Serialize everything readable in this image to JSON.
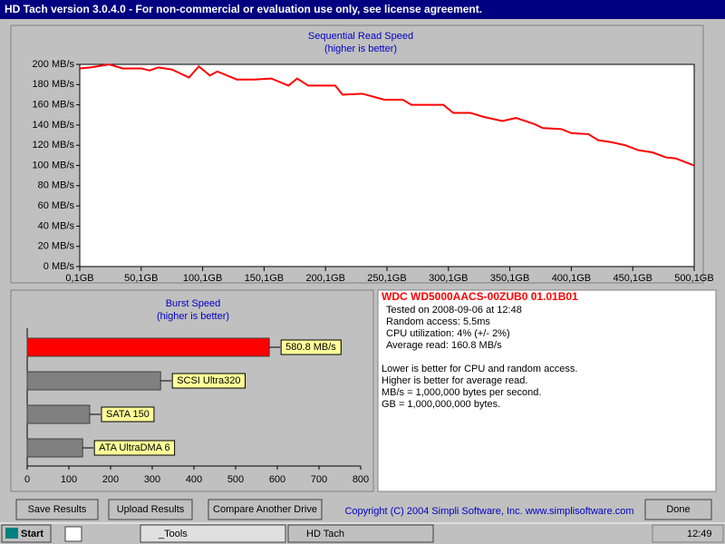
{
  "title_bar": "HD Tach version 3.0.4.0  - For non-commercial or evaluation use only, see license agreement.",
  "read_chart": {
    "type": "line",
    "title": "Sequential Read Speed",
    "subtitle": "(higher is better)",
    "color": "#ff0000",
    "x": [
      0.1,
      9,
      24,
      35,
      50,
      57,
      64,
      75,
      89,
      97,
      106,
      112,
      128,
      142,
      156,
      170,
      177,
      186,
      208,
      214,
      230,
      248,
      263,
      270,
      296,
      304,
      318,
      329,
      344,
      355,
      370,
      377,
      392,
      400,
      414,
      422,
      433,
      444,
      455,
      466,
      477,
      485,
      500
    ],
    "values": [
      196,
      197,
      200,
      196,
      196,
      194,
      197,
      195,
      187,
      198,
      189,
      193,
      185,
      185,
      186,
      179,
      186,
      179,
      179,
      170,
      171,
      165,
      165,
      160,
      160,
      152,
      152,
      148,
      144,
      147,
      141,
      137,
      136,
      132,
      131,
      125,
      123,
      120,
      115,
      113,
      108,
      107,
      100
    ],
    "xlim": [
      0.1,
      500.1
    ],
    "xticks": [
      {
        "value": 0.1,
        "label": "0,1GB"
      },
      {
        "value": 50.1,
        "label": "50,1GB"
      },
      {
        "value": 100.1,
        "label": "100,1GB"
      },
      {
        "value": 150.1,
        "label": "150,1GB"
      },
      {
        "value": 200.1,
        "label": "200,1GB"
      },
      {
        "value": 250.1,
        "label": "250,1GB"
      },
      {
        "value": 300.1,
        "label": "300,1GB"
      },
      {
        "value": 350.1,
        "label": "350,1GB"
      },
      {
        "value": 400.1,
        "label": "400,1GB"
      },
      {
        "value": 450.1,
        "label": "450,1GB"
      },
      {
        "value": 500.1,
        "label": "500,1GB"
      }
    ],
    "ylim": [
      0,
      200
    ],
    "yticks": [
      {
        "value": 0,
        "label": "0 MB/s"
      },
      {
        "value": 20,
        "label": "20 MB/s"
      },
      {
        "value": 40,
        "label": "40 MB/s"
      },
      {
        "value": 60,
        "label": "60 MB/s"
      },
      {
        "value": 80,
        "label": "80 MB/s"
      },
      {
        "value": 100,
        "label": "100 MB/s"
      },
      {
        "value": 120,
        "label": "120 MB/s"
      },
      {
        "value": 140,
        "label": "140 MB/s"
      },
      {
        "value": 160,
        "label": "160 MB/s"
      },
      {
        "value": 180,
        "label": "180 MB/s"
      },
      {
        "value": 200,
        "label": "200 MB/s"
      }
    ]
  },
  "burst_chart": {
    "type": "bar",
    "title": "Burst Speed",
    "subtitle": "(higher is better)",
    "bars": [
      {
        "label": "580.8 MB/s",
        "value": 580.8,
        "color": "#ff0000"
      },
      {
        "label": "SCSI Ultra320",
        "value": 320,
        "color": "#808080"
      },
      {
        "label": "SATA 150",
        "value": 150,
        "color": "#808080"
      },
      {
        "label": "ATA UltraDMA 6",
        "value": 133,
        "color": "#808080"
      }
    ],
    "xlim": [
      0,
      800
    ],
    "xticks": [
      0,
      100,
      200,
      300,
      400,
      500,
      600,
      700,
      800
    ]
  },
  "info": {
    "drive": "WDC WD5000AACS-00ZUB0 01.01B01",
    "results": [
      "Tested on 2008-09-06 at 12:48",
      "Random access: 5.5ms",
      "CPU utilization: 4% (+/- 2%)",
      "Average read: 160.8 MB/s"
    ],
    "notes": [
      "Lower is better for CPU and random access.",
      "Higher is better for average read.",
      "MB/s = 1,000,000 bytes per second.",
      "GB = 1,000,000,000 bytes."
    ]
  },
  "buttons": [
    "Save Results",
    "Upload Results",
    "Compare Another Drive",
    "Done"
  ],
  "copyright": "Copyright (C) 2004 Simpli Software, Inc. www.simplisoftware.com",
  "taskbar": {
    "start": "Start",
    "tasks": [
      "_Tools",
      "HD Tach"
    ],
    "clock": "12:49"
  }
}
